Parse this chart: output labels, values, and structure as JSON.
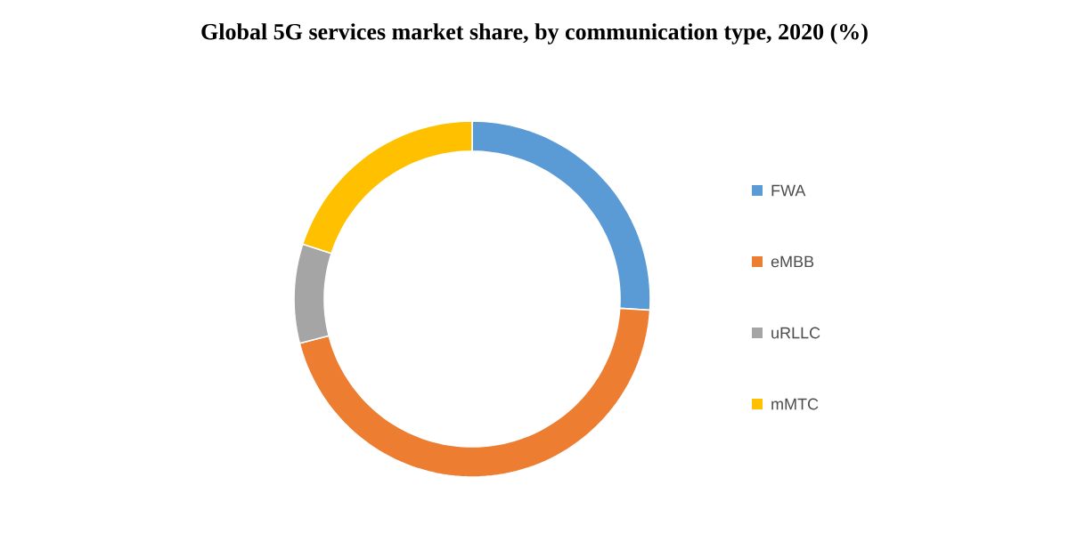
{
  "chart_data": {
    "type": "donut",
    "title": "Global 5G services market share, by communication type, 2020 (%)",
    "categories": [
      "FWA",
      "eMBB",
      "uRLLC",
      "mMTC"
    ],
    "values": [
      26,
      45,
      9,
      20
    ],
    "colors": [
      "#5b9bd5",
      "#ed7d31",
      "#a5a5a5",
      "#ffc000"
    ],
    "legend": "right"
  }
}
